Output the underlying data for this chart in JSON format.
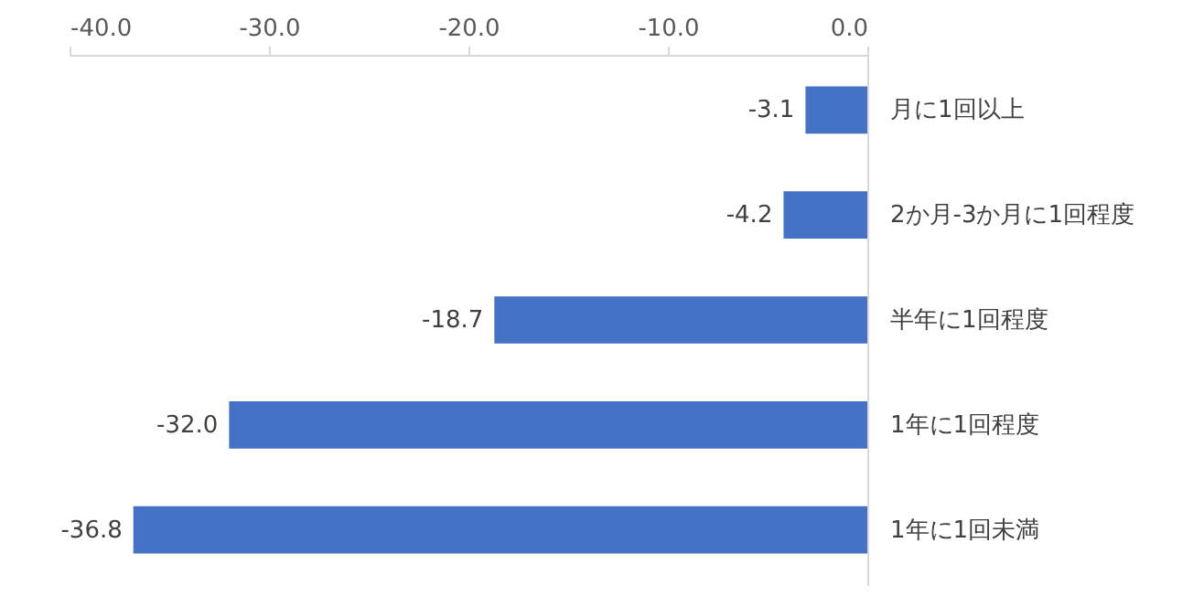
{
  "chart_data": {
    "type": "bar",
    "orientation": "horizontal",
    "categories": [
      "月に1回以上",
      "2か月-3か月に1回程度",
      "半年に1回程度",
      "1年に1回程度",
      "1年に1回未満"
    ],
    "values": [
      -3.1,
      -4.2,
      -18.7,
      -32.0,
      -36.8
    ],
    "color": "#4472c4",
    "xlim": [
      -40,
      0
    ],
    "xticks": [
      {
        "value": -40,
        "label": "-40.0"
      },
      {
        "value": -30,
        "label": "-30.0"
      },
      {
        "value": -20,
        "label": "-20.0"
      },
      {
        "value": -10,
        "label": "-10.0"
      },
      {
        "value": 0,
        "label": "0.0"
      }
    ],
    "value_labels": [
      "-3.1",
      "-4.2",
      "-18.7",
      "-32.0",
      "-36.8"
    ],
    "grid": false
  }
}
